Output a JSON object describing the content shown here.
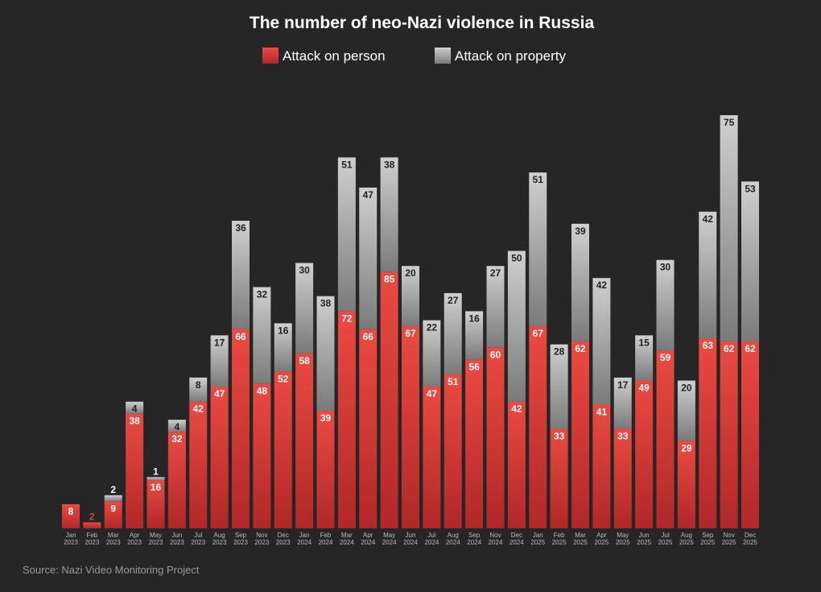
{
  "chart_data": {
    "type": "stacked-bar",
    "title": "The number of neo-Nazi violence in Russia",
    "source": "Source: Nazi Video Monitoring Project",
    "categories": [
      "Jan 2023",
      "Feb 2023",
      "Mar 2023",
      "Apr 2023",
      "May 2023",
      "Jun 2023",
      "Jul 2023",
      "Aug 2023",
      "Sep 2023",
      "Nov 2023",
      "Dec 2023",
      "Jan 2024",
      "Feb 2024",
      "Mar 2024",
      "Apr 2024",
      "May 2024",
      "Jun 2024",
      "Jul 2024",
      "Aug 2024",
      "Sep 2024",
      "Nov 2024",
      "Dec 2024",
      "Jan 2025",
      "Feb 2025",
      "Mar 2025",
      "Apr 2025",
      "May 2025",
      "Jun 2025",
      "Jul 2025",
      "Aug 2025",
      "Sep 2025",
      "Nov 2025",
      "Dec 2025"
    ],
    "series": [
      {
        "name": "Attack on person",
        "color": "#e03a3a",
        "values": [
          8,
          2,
          9,
          38,
          16,
          32,
          42,
          47,
          66,
          48,
          52,
          58,
          39,
          72,
          66,
          85,
          67,
          47,
          51,
          56,
          60,
          42,
          67,
          33,
          62,
          41,
          33,
          49,
          59,
          29,
          63,
          62,
          62
        ]
      },
      {
        "name": "Attack on property",
        "color": "#a6a6a6",
        "values": [
          null,
          null,
          2,
          4,
          1,
          4,
          8,
          17,
          36,
          32,
          16,
          30,
          38,
          51,
          47,
          38,
          20,
          22,
          27,
          16,
          27,
          50,
          51,
          28,
          39,
          42,
          17,
          15,
          30,
          20,
          42,
          75,
          53
        ]
      }
    ]
  }
}
